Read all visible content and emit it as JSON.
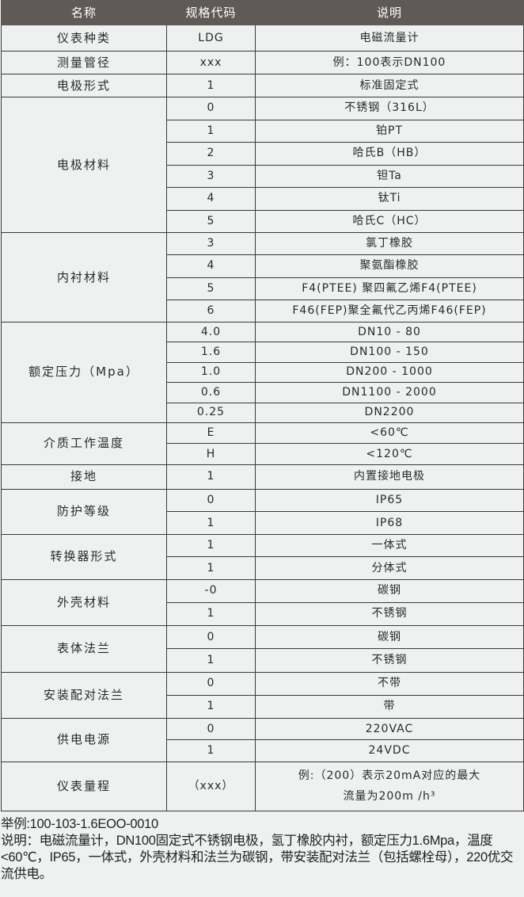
{
  "header": {
    "name": "名称",
    "code": "规格代码",
    "desc": "说明"
  },
  "groups": [
    {
      "name": "仪表种类",
      "rows": [
        {
          "code": "LDG",
          "desc": "电磁流量计"
        }
      ]
    },
    {
      "name": "测量管径",
      "rows": [
        {
          "code": "xxx",
          "desc": "例：100表示DN100"
        }
      ]
    },
    {
      "name": "电极形式",
      "rows": [
        {
          "code": "1",
          "desc": "标准固定式"
        }
      ]
    },
    {
      "name": "电极材料",
      "rows": [
        {
          "code": "0",
          "desc": "不锈钢（316L）"
        },
        {
          "code": "1",
          "desc": "铂PT"
        },
        {
          "code": "2",
          "desc": "哈氏B（HB）"
        },
        {
          "code": "3",
          "desc": "钽Ta"
        },
        {
          "code": "4",
          "desc": "钛Ti"
        },
        {
          "code": "5",
          "desc": "哈氏C（HC）"
        }
      ]
    },
    {
      "name": "内衬材料",
      "rows": [
        {
          "code": "3",
          "desc": "氯丁橡胶"
        },
        {
          "code": "4",
          "desc": "聚氨酯橡胶"
        },
        {
          "code": "5",
          "desc": "F4(PTEE) 聚四氟乙烯F4(PTEE)"
        },
        {
          "code": "6",
          "desc": "F46(FEP)聚全氟代乙丙烯F46(FEP)"
        }
      ]
    },
    {
      "name": "额定压力（Mpa）",
      "rows": [
        {
          "code": "4.0",
          "desc": "DN10 - 80"
        },
        {
          "code": "1.6",
          "desc": "DN100 - 150"
        },
        {
          "code": "1.0",
          "desc": "DN200 - 1000"
        },
        {
          "code": "0.6",
          "desc": "DN1100 - 2000"
        },
        {
          "code": "0.25",
          "desc": "DN2200"
        }
      ]
    },
    {
      "name": "介质工作温度",
      "rows": [
        {
          "code": "E",
          "desc": "<60℃"
        },
        {
          "code": "H",
          "desc": "<120℃"
        }
      ]
    },
    {
      "name": "接地",
      "rows": [
        {
          "code": "1",
          "desc": "内置接地电极"
        }
      ]
    },
    {
      "name": "防护等级",
      "rows": [
        {
          "code": "0",
          "desc": "IP65"
        },
        {
          "code": "1",
          "desc": "IP68"
        }
      ]
    },
    {
      "name": "转换器形式",
      "rows": [
        {
          "code": "1",
          "desc": "一体式"
        },
        {
          "code": "1",
          "desc": "分体式"
        }
      ]
    },
    {
      "name": "外壳材料",
      "rows": [
        {
          "code": "-0",
          "desc": "碳钢"
        },
        {
          "code": "1",
          "desc": "不锈钢"
        }
      ]
    },
    {
      "name": "表体法兰",
      "rows": [
        {
          "code": "0",
          "desc": "碳钢"
        },
        {
          "code": "1",
          "desc": "不锈钢"
        }
      ]
    },
    {
      "name": "安装配对法兰",
      "rows": [
        {
          "code": "0",
          "desc": "不带"
        },
        {
          "code": "1",
          "desc": "带"
        }
      ]
    },
    {
      "name": "供电电源",
      "rows": [
        {
          "code": "0",
          "desc": "220VAC"
        },
        {
          "code": "1",
          "desc": "24VDC"
        }
      ]
    },
    {
      "name": "仪表量程",
      "rows": [
        {
          "code": "（xxx）",
          "desc": "例:（200）表示20mA对应的最大",
          "desc2": "流量为200m  /h³"
        }
      ]
    }
  ],
  "example": "举例:100-103-1.6EOO-0010",
  "explanation": "说明：电磁流量计，DN100固定式不锈钢电极，氢丁橡胶内衬，额定压力1.6Mpa，温度<60℃，IP65，一体式，外壳材料和法兰为碳钢，带安装配对法兰（包括螺栓母），220优交流供电。"
}
